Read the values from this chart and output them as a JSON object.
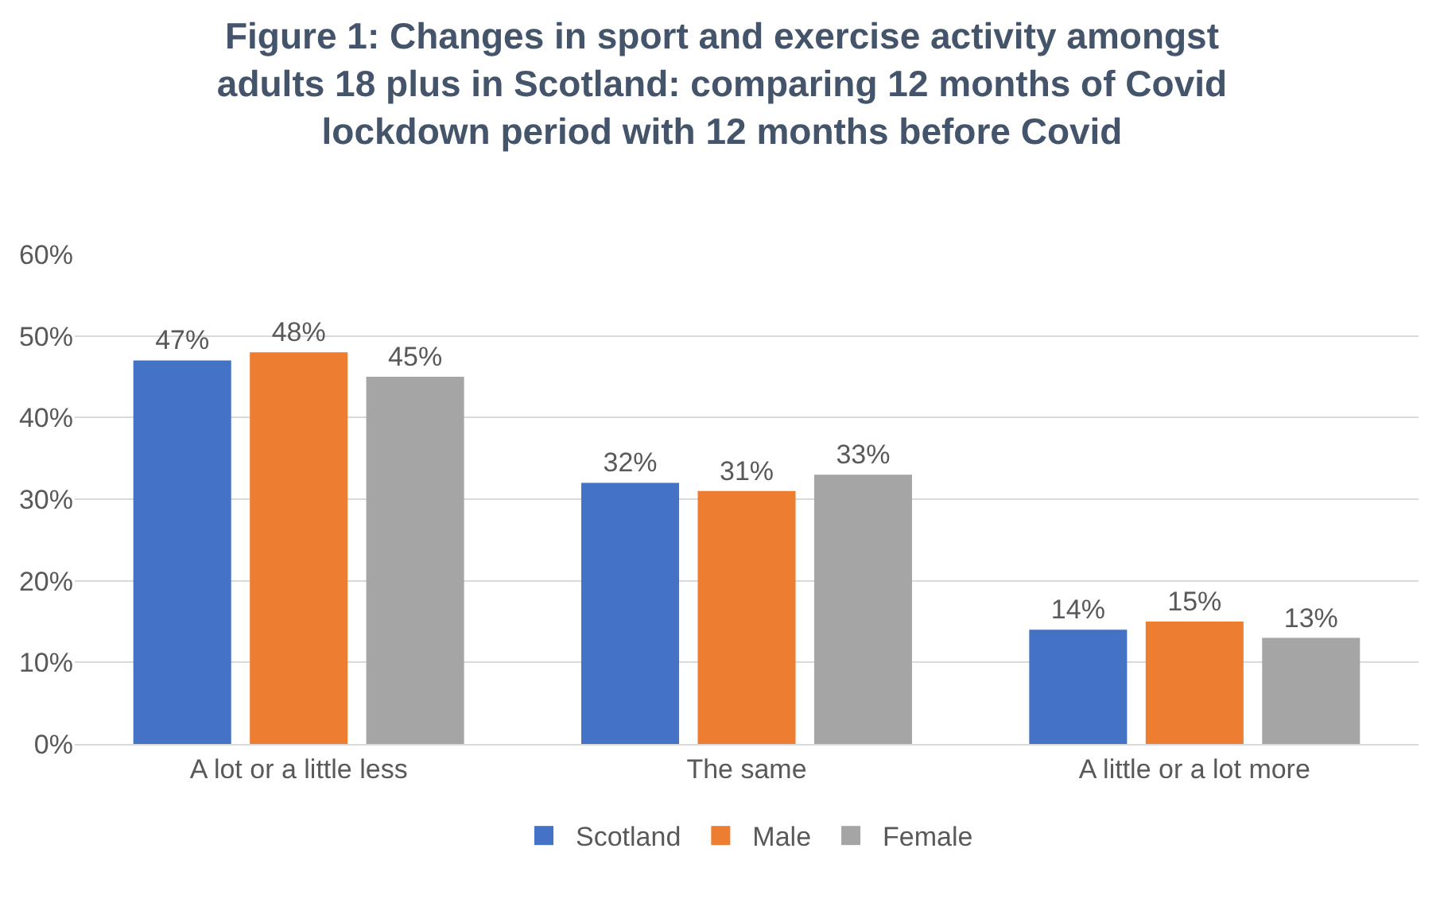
{
  "chart_data": {
    "type": "bar",
    "title": "Figure 1: Changes in sport and exercise activity amongst\nadults 18 plus in Scotland: comparing 12 months of Covid\nlockdown period with 12 months before Covid",
    "categories": [
      "A lot or a little less",
      "The same",
      "A little or a lot more"
    ],
    "series": [
      {
        "name": "Scotland",
        "color": "#4472c4",
        "values": [
          47,
          32,
          14
        ],
        "value_labels": [
          "47%",
          "32%",
          "14%"
        ]
      },
      {
        "name": "Male",
        "color": "#ed7d31",
        "values": [
          48,
          31,
          15
        ],
        "value_labels": [
          "48%",
          "31%",
          "15%"
        ]
      },
      {
        "name": "Female",
        "color": "#a5a5a5",
        "values": [
          45,
          33,
          13
        ],
        "value_labels": [
          "45%",
          "33%",
          "13%"
        ]
      }
    ],
    "ylim": [
      0,
      60
    ],
    "yticks": [
      {
        "value": 0,
        "label": "0%"
      },
      {
        "value": 10,
        "label": "10%"
      },
      {
        "value": 20,
        "label": "20%"
      },
      {
        "value": 30,
        "label": "30%"
      },
      {
        "value": 40,
        "label": "40%"
      },
      {
        "value": 50,
        "label": "50%"
      },
      {
        "value": 60,
        "label": "60%"
      }
    ],
    "grid": "y",
    "legend": "bottom"
  }
}
